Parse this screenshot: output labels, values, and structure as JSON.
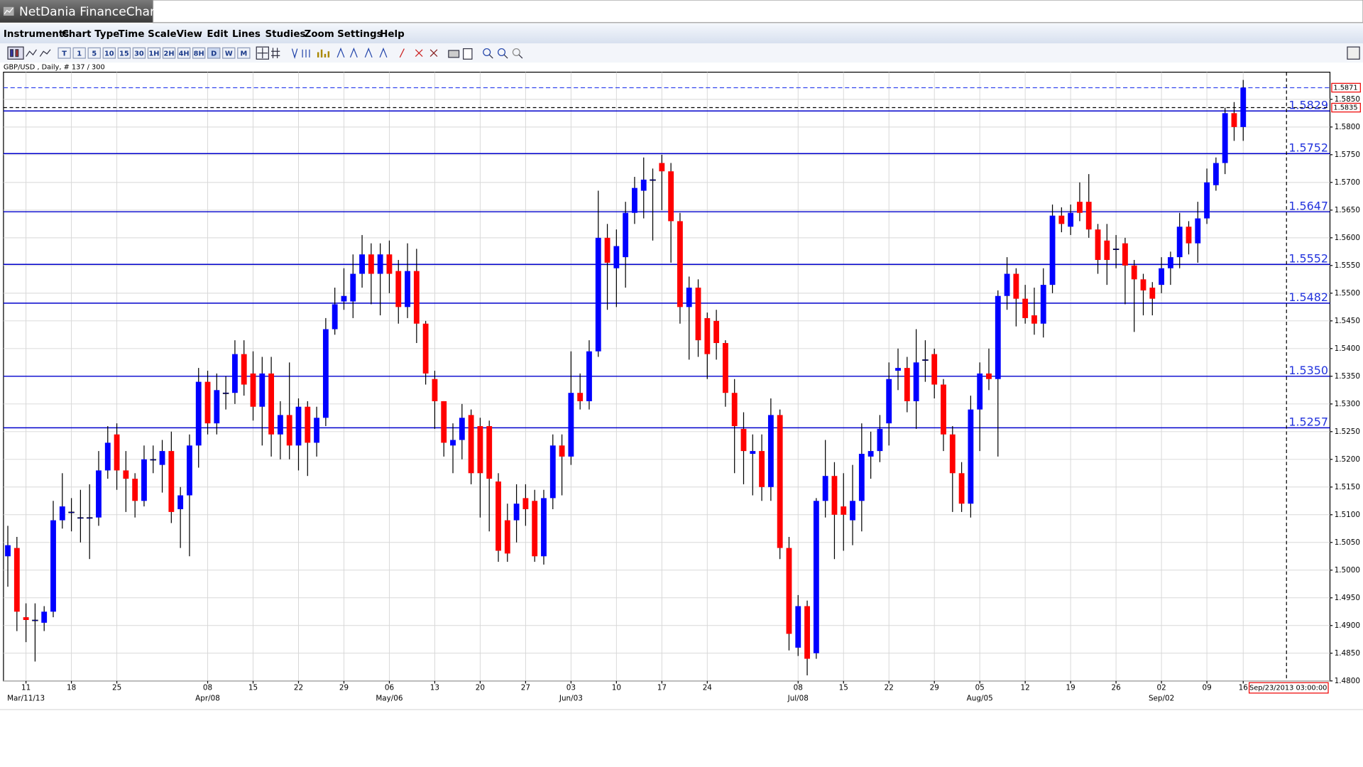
{
  "window": {
    "title": "NetDania FinanceChart"
  },
  "menu": [
    "Instruments",
    "Chart Type",
    "Time Scale",
    "View",
    "Edit",
    "Lines",
    "Studies",
    "Zoom",
    "Settings",
    "Help"
  ],
  "toolbar": {
    "timeframes": [
      "T",
      "1",
      "5",
      "10",
      "15",
      "30",
      "1H",
      "2H",
      "4H",
      "8H",
      "D",
      "W",
      "M"
    ]
  },
  "chart_data": {
    "type": "candlestick",
    "subtitle": "GBP/USD , Daily, # 137 / 300",
    "up_color": "#0000ff",
    "down_color": "#ff0000",
    "level_color": "#0000cc",
    "grid": true,
    "categories": [
      null,
      null,
      "11",
      null,
      null,
      null,
      null,
      "18",
      null,
      null,
      null,
      null,
      "25",
      null,
      null,
      null,
      null,
      null,
      null,
      null,
      null,
      null,
      "08",
      null,
      null,
      null,
      null,
      "15",
      null,
      null,
      null,
      null,
      "22",
      null,
      null,
      null,
      null,
      "29",
      null,
      null,
      null,
      null,
      "06",
      null,
      null,
      null,
      null,
      "13",
      null,
      null,
      null,
      null,
      "20",
      null,
      null,
      null,
      null,
      "27",
      null,
      null,
      null,
      null,
      "03",
      null,
      null,
      null,
      null,
      "10",
      null,
      null,
      null,
      null,
      "17",
      null,
      null,
      null,
      null,
      "24",
      null,
      null,
      null,
      null,
      null,
      null,
      null,
      null,
      null,
      "08",
      null,
      null,
      null,
      null,
      "15",
      null,
      null,
      null,
      null,
      "22",
      null,
      null,
      null,
      null,
      "29",
      null,
      null,
      null,
      null,
      "05",
      null,
      null,
      null,
      null,
      "12",
      null,
      null,
      null,
      null,
      "19",
      null,
      null,
      null,
      null,
      "26",
      null,
      null,
      null,
      null,
      "02",
      null,
      null,
      null,
      null,
      "09",
      null,
      null,
      null,
      "16"
    ],
    "category_sublabels": [
      null,
      null,
      "Mar/11/13",
      null,
      null,
      null,
      null,
      null,
      null,
      null,
      null,
      null,
      null,
      null,
      null,
      null,
      null,
      null,
      null,
      null,
      null,
      null,
      "Apr/08",
      null,
      null,
      null,
      null,
      null,
      null,
      null,
      null,
      null,
      null,
      null,
      null,
      null,
      null,
      null,
      null,
      null,
      null,
      null,
      "May/06",
      null,
      null,
      null,
      null,
      null,
      null,
      null,
      null,
      null,
      null,
      null,
      null,
      null,
      null,
      null,
      null,
      null,
      null,
      null,
      "Jun/03",
      null,
      null,
      null,
      null,
      null,
      null,
      null,
      null,
      null,
      null,
      null,
      null,
      null,
      null,
      null,
      null,
      null,
      null,
      null,
      null,
      null,
      null,
      null,
      null,
      "Jul/08",
      null,
      null,
      null,
      null,
      null,
      null,
      null,
      null,
      null,
      null,
      null,
      null,
      null,
      null,
      null,
      null,
      null,
      null,
      null,
      "Aug/05",
      null,
      null,
      null,
      null,
      null,
      null,
      null,
      null,
      null,
      null,
      null,
      null,
      null,
      null,
      null,
      null,
      null,
      null,
      null,
      "Sep/02",
      null,
      null,
      null,
      null,
      null,
      null,
      null,
      null,
      null
    ],
    "open": [
      1.5025,
      1.504,
      1.4915,
      1.491,
      1.4905,
      1.4925,
      1.509,
      1.5105,
      1.5095,
      1.5095,
      1.5095,
      1.518,
      1.5245,
      1.518,
      1.5165,
      1.5125,
      1.52,
      1.519,
      1.5215,
      1.511,
      1.5135,
      1.5225,
      1.534,
      1.5265,
      1.532,
      1.532,
      1.539,
      1.5355,
      1.5295,
      1.5355,
      1.5245,
      1.528,
      1.5225,
      1.5295,
      1.523,
      1.5275,
      1.5435,
      1.5485,
      1.5485,
      1.5535,
      1.557,
      1.5535,
      1.557,
      1.554,
      1.5475,
      1.554,
      1.5445,
      1.5345,
      1.5305,
      1.5225,
      1.5235,
      1.528,
      1.526,
      1.526,
      1.516,
      1.509,
      1.509,
      1.513,
      1.5125,
      1.5025,
      1.513,
      1.5225,
      1.5205,
      1.532,
      1.5305,
      1.5395,
      1.56,
      1.5545,
      1.5565,
      1.5645,
      1.5685,
      1.5705,
      1.5735,
      1.572,
      1.563,
      1.5475,
      1.551,
      1.5455,
      1.545,
      1.541,
      1.532,
      1.5255,
      1.521,
      1.5215,
      1.515,
      1.528,
      1.504,
      1.486,
      1.4935,
      1.485,
      1.5125,
      1.517,
      1.5115,
      1.509,
      1.5125,
      1.5205,
      1.5215,
      1.5265,
      1.536,
      1.5365,
      1.5305,
      1.538,
      1.539,
      1.5335,
      1.5245,
      1.5175,
      1.512,
      1.529,
      1.5355,
      1.5345,
      1.5495,
      1.5535,
      1.549,
      1.546,
      1.5445,
      1.5515,
      1.564,
      1.562,
      1.5665,
      1.5665,
      1.5615,
      1.5595,
      1.558,
      1.559,
      1.555,
      1.5525,
      1.551,
      1.5515,
      1.5545,
      1.5565,
      1.562,
      1.559,
      1.5635,
      1.5695,
      1.5735,
      1.5825,
      1.58
    ],
    "high": [
      1.508,
      1.506,
      1.494,
      1.494,
      1.4935,
      1.5125,
      1.5175,
      1.513,
      1.5145,
      1.5155,
      1.5215,
      1.526,
      1.5265,
      1.5215,
      1.5175,
      1.5225,
      1.5225,
      1.5235,
      1.525,
      1.515,
      1.5245,
      1.5365,
      1.536,
      1.5355,
      1.535,
      1.5415,
      1.5415,
      1.5395,
      1.5385,
      1.5385,
      1.5305,
      1.5375,
      1.531,
      1.5305,
      1.5295,
      1.5455,
      1.551,
      1.5545,
      1.557,
      1.5605,
      1.559,
      1.559,
      1.5595,
      1.556,
      1.559,
      1.558,
      1.545,
      1.536,
      1.5305,
      1.5265,
      1.53,
      1.529,
      1.5275,
      1.527,
      1.5175,
      1.512,
      1.5155,
      1.5155,
      1.5145,
      1.5145,
      1.5245,
      1.5245,
      1.5395,
      1.5355,
      1.5415,
      1.5685,
      1.5625,
      1.5615,
      1.5665,
      1.571,
      1.5745,
      1.5725,
      1.575,
      1.5735,
      1.5645,
      1.553,
      1.5525,
      1.5465,
      1.547,
      1.5415,
      1.5345,
      1.5285,
      1.5245,
      1.5245,
      1.531,
      1.529,
      1.506,
      1.4955,
      1.4945,
      1.513,
      1.5235,
      1.5195,
      1.5175,
      1.519,
      1.5265,
      1.525,
      1.528,
      1.5375,
      1.54,
      1.5385,
      1.5435,
      1.5415,
      1.54,
      1.5345,
      1.526,
      1.5195,
      1.5315,
      1.5375,
      1.54,
      1.5505,
      1.5565,
      1.5545,
      1.5515,
      1.551,
      1.5545,
      1.566,
      1.5655,
      1.566,
      1.57,
      1.5715,
      1.5625,
      1.5625,
      1.5605,
      1.56,
      1.556,
      1.5535,
      1.552,
      1.5565,
      1.5575,
      1.5645,
      1.563,
      1.5665,
      1.5725,
      1.5745,
      1.5835,
      1.5845,
      1.5885
    ],
    "low": [
      1.497,
      1.489,
      1.487,
      1.4835,
      1.489,
      1.4915,
      1.5075,
      1.507,
      1.505,
      1.502,
      1.508,
      1.5165,
      1.5145,
      1.5105,
      1.5095,
      1.5115,
      1.5175,
      1.514,
      1.5085,
      1.504,
      1.5025,
      1.5185,
      1.5245,
      1.5245,
      1.529,
      1.53,
      1.5315,
      1.527,
      1.5225,
      1.5205,
      1.52,
      1.52,
      1.518,
      1.517,
      1.5205,
      1.526,
      1.5425,
      1.547,
      1.5455,
      1.551,
      1.548,
      1.546,
      1.55,
      1.5445,
      1.5455,
      1.541,
      1.5335,
      1.5255,
      1.5205,
      1.5175,
      1.52,
      1.5155,
      1.5095,
      1.507,
      1.5015,
      1.5015,
      1.505,
      1.508,
      1.5015,
      1.501,
      1.511,
      1.5135,
      1.519,
      1.529,
      1.529,
      1.5385,
      1.547,
      1.5475,
      1.551,
      1.5625,
      1.5635,
      1.5595,
      1.565,
      1.5555,
      1.5445,
      1.538,
      1.5385,
      1.5345,
      1.538,
      1.5295,
      1.5175,
      1.5155,
      1.5135,
      1.5125,
      1.5125,
      1.502,
      1.4855,
      1.4845,
      1.481,
      1.484,
      1.5095,
      1.502,
      1.5035,
      1.5045,
      1.507,
      1.5165,
      1.5195,
      1.5225,
      1.5325,
      1.5285,
      1.5255,
      1.534,
      1.531,
      1.5215,
      1.5105,
      1.5105,
      1.5095,
      1.5215,
      1.5325,
      1.5205,
      1.547,
      1.544,
      1.5445,
      1.5425,
      1.542,
      1.55,
      1.561,
      1.5605,
      1.563,
      1.56,
      1.5535,
      1.5515,
      1.5545,
      1.548,
      1.543,
      1.546,
      1.546,
      1.55,
      1.5515,
      1.5545,
      1.557,
      1.5555,
      1.5625,
      1.5685,
      1.5715,
      1.5775,
      1.5775
    ],
    "close": [
      1.5045,
      1.4925,
      1.491,
      1.491,
      1.4925,
      1.509,
      1.5115,
      1.5105,
      1.5095,
      1.5095,
      1.518,
      1.523,
      1.518,
      1.5165,
      1.5125,
      1.52,
      1.52,
      1.5215,
      1.5105,
      1.5135,
      1.5225,
      1.534,
      1.5265,
      1.5325,
      1.532,
      1.539,
      1.5335,
      1.5295,
      1.5355,
      1.5245,
      1.528,
      1.5225,
      1.5295,
      1.523,
      1.5275,
      1.5435,
      1.548,
      1.5495,
      1.5535,
      1.557,
      1.5535,
      1.557,
      1.5535,
      1.5475,
      1.554,
      1.5445,
      1.5355,
      1.5305,
      1.523,
      1.5235,
      1.5275,
      1.5175,
      1.5175,
      1.5165,
      1.5035,
      1.503,
      1.512,
      1.511,
      1.5025,
      1.513,
      1.5225,
      1.5205,
      1.532,
      1.5305,
      1.5395,
      1.56,
      1.5555,
      1.5585,
      1.5645,
      1.569,
      1.5705,
      1.5705,
      1.572,
      1.563,
      1.5475,
      1.551,
      1.5415,
      1.539,
      1.541,
      1.532,
      1.526,
      1.5215,
      1.5215,
      1.515,
      1.528,
      1.504,
      1.4885,
      1.4935,
      1.484,
      1.5125,
      1.517,
      1.51,
      1.51,
      1.5125,
      1.521,
      1.5215,
      1.5255,
      1.5345,
      1.5365,
      1.5305,
      1.5375,
      1.538,
      1.5335,
      1.5245,
      1.5175,
      1.512,
      1.529,
      1.5355,
      1.5345,
      1.5495,
      1.5535,
      1.549,
      1.5455,
      1.5445,
      1.5515,
      1.564,
      1.5625,
      1.5645,
      1.5645,
      1.5615,
      1.556,
      1.556,
      1.558,
      1.555,
      1.5525,
      1.5505,
      1.549,
      1.5545,
      1.5565,
      1.562,
      1.559,
      1.5635,
      1.57,
      1.5735,
      1.5825,
      1.58,
      1.5871
    ],
    "ylim": [
      1.48,
      1.5899
    ],
    "yticks": [
      {
        "value": 1.585,
        "label": "1.5850"
      },
      {
        "value": 1.58,
        "label": "1.5800"
      },
      {
        "value": 1.575,
        "label": "1.5750"
      },
      {
        "value": 1.57,
        "label": "1.5700"
      },
      {
        "value": 1.565,
        "label": "1.5650"
      },
      {
        "value": 1.56,
        "label": "1.5600"
      },
      {
        "value": 1.555,
        "label": "1.5550"
      },
      {
        "value": 1.55,
        "label": "1.5500"
      },
      {
        "value": 1.545,
        "label": "1.5450"
      },
      {
        "value": 1.54,
        "label": "1.5400"
      },
      {
        "value": 1.535,
        "label": "1.5350"
      },
      {
        "value": 1.53,
        "label": "1.5300"
      },
      {
        "value": 1.525,
        "label": "1.5250"
      },
      {
        "value": 1.52,
        "label": "1.5200"
      },
      {
        "value": 1.515,
        "label": "1.5150"
      },
      {
        "value": 1.51,
        "label": "1.5100"
      },
      {
        "value": 1.505,
        "label": "1.5050"
      },
      {
        "value": 1.5,
        "label": "1.5000"
      },
      {
        "value": 1.495,
        "label": "1.4950"
      },
      {
        "value": 1.49,
        "label": "1.4900"
      },
      {
        "value": 1.485,
        "label": "1.4850"
      },
      {
        "value": 1.48,
        "label": "1.4800"
      }
    ],
    "levels": [
      1.5829,
      1.5752,
      1.5647,
      1.5552,
      1.5482,
      {
        "value": 1.535,
        "label": "1.5350"
      },
      1.5257
    ],
    "last_price": 1.5871,
    "cursor_price": 1.5835,
    "cursor_time": "Sep/23/2013 03:00:00"
  }
}
